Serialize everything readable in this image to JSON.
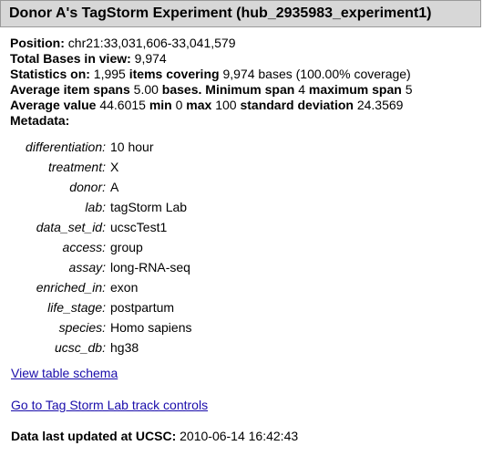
{
  "title": "Donor A's TagStorm Experiment (hub_2935983_experiment1)",
  "info": {
    "position_label": "Position:",
    "position_value": "chr21:33,031,606-33,041,579",
    "total_bases_label": "Total Bases in view:",
    "total_bases_value": "9,974",
    "stats_label": "Statistics on:",
    "stats_items": "1,995",
    "stats_items_label": "items covering",
    "stats_bases": "9,974",
    "stats_tail": "bases (100.00% coverage)",
    "avg_span_label": "Average item spans",
    "avg_span_value": "5.00",
    "avg_span_unit": "bases.",
    "min_span_label": "Minimum span",
    "min_span_value": "4",
    "max_span_label": "maximum span",
    "max_span_value": "5",
    "avg_value_label": "Average value",
    "avg_value_value": "44.6015",
    "min_label": "min",
    "min_value": "0",
    "max_label": "max",
    "max_value": "100",
    "sd_label": "standard deviation",
    "sd_value": "24.3569",
    "metadata_label": "Metadata:"
  },
  "metadata": [
    {
      "key": "differentiation:",
      "value": "10 hour"
    },
    {
      "key": "treatment:",
      "value": "X"
    },
    {
      "key": "donor:",
      "value": "A"
    },
    {
      "key": "lab:",
      "value": "tagStorm Lab"
    },
    {
      "key": "data_set_id:",
      "value": "ucscTest1"
    },
    {
      "key": "access:",
      "value": "group"
    },
    {
      "key": "assay:",
      "value": "long-RNA-seq"
    },
    {
      "key": "enriched_in:",
      "value": "exon"
    },
    {
      "key": "life_stage:",
      "value": "postpartum"
    },
    {
      "key": "species:",
      "value": "Homo sapiens"
    },
    {
      "key": "ucsc_db:",
      "value": "hg38"
    }
  ],
  "links": {
    "schema": "View table schema",
    "controls": "Go to Tag Storm Lab track controls"
  },
  "updated": {
    "label": "Data last updated at UCSC:",
    "value": "2010-06-14 16:42:43"
  }
}
